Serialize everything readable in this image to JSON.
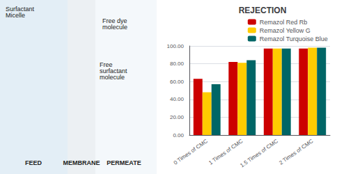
{
  "chart_data": {
    "type": "bar",
    "title": "REJECTION",
    "categories": [
      "0 Times of CMC",
      "1 Times of CMC",
      "1.5 Times of CMC",
      "2 Times of CMC"
    ],
    "series": [
      {
        "name": "Remazol Red Rb",
        "color": "#cc0000",
        "values": [
          63,
          82,
          97,
          97
        ]
      },
      {
        "name": "Remazol Yellow G",
        "color": "#ffcc00",
        "values": [
          48,
          81,
          97,
          98
        ]
      },
      {
        "name": "Remazol Turquoise Blue",
        "color": "#006666",
        "values": [
          57,
          84,
          97,
          98
        ]
      }
    ],
    "ylim": [
      0,
      100
    ],
    "yticks": [
      {
        "value": 0,
        "label": "0.00"
      },
      {
        "value": 20,
        "label": "20.00"
      },
      {
        "value": 40,
        "label": "40.00"
      },
      {
        "value": 60,
        "label": "60.00"
      },
      {
        "value": 80,
        "label": "80.00"
      },
      {
        "value": 100,
        "label": "100.00"
      }
    ],
    "grid": true,
    "legend": "upper right",
    "annotations": [
      "FEED",
      "MEMBRANE",
      "PERMEATE",
      "Surfactant\nMicelle",
      "Free dye\nmolecule",
      "Free\nsurfactant\nmolecule"
    ]
  }
}
